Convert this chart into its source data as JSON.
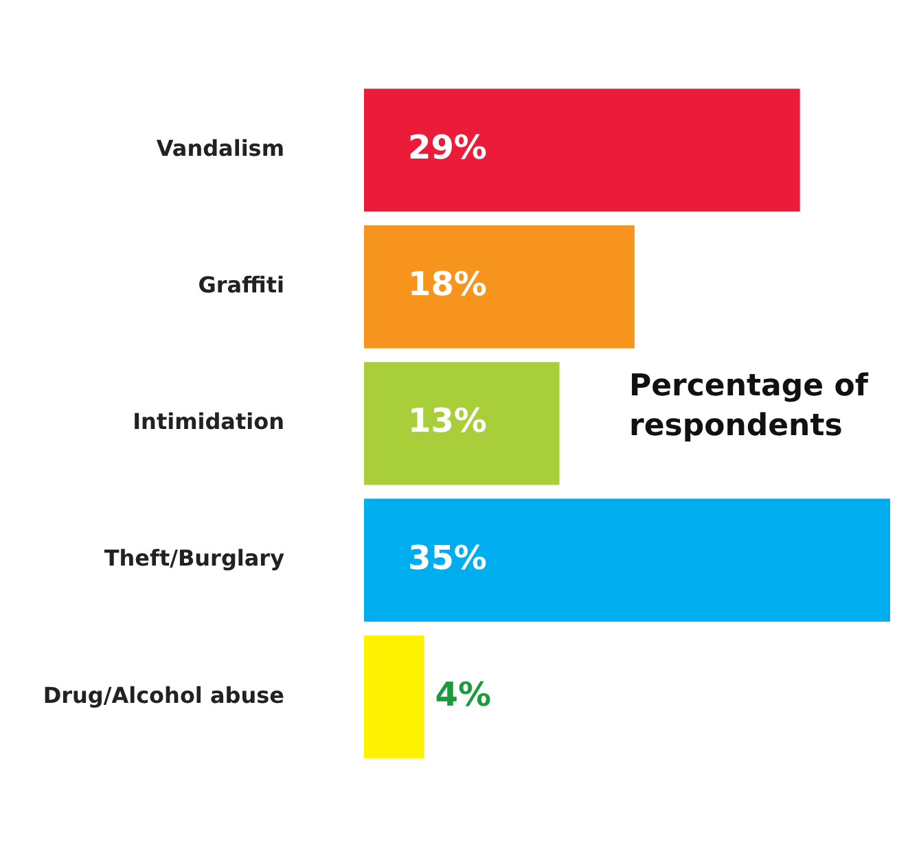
{
  "chart_data": {
    "type": "bar",
    "orientation": "horizontal",
    "categories": [
      "Vandalism",
      "Graffiti",
      "Intimidation",
      "Theft/Burglary",
      "Drug/Alcohol abuse"
    ],
    "values": [
      29,
      18,
      13,
      35,
      4
    ],
    "colors": [
      "#ed1b3a",
      "#f7941e",
      "#a8cf3a",
      "#00aeef",
      "#fff200"
    ],
    "value_labels": [
      "29%",
      "18%",
      "13%",
      "35%",
      "4%"
    ],
    "annotations": [
      "Percentage of respondents"
    ]
  }
}
